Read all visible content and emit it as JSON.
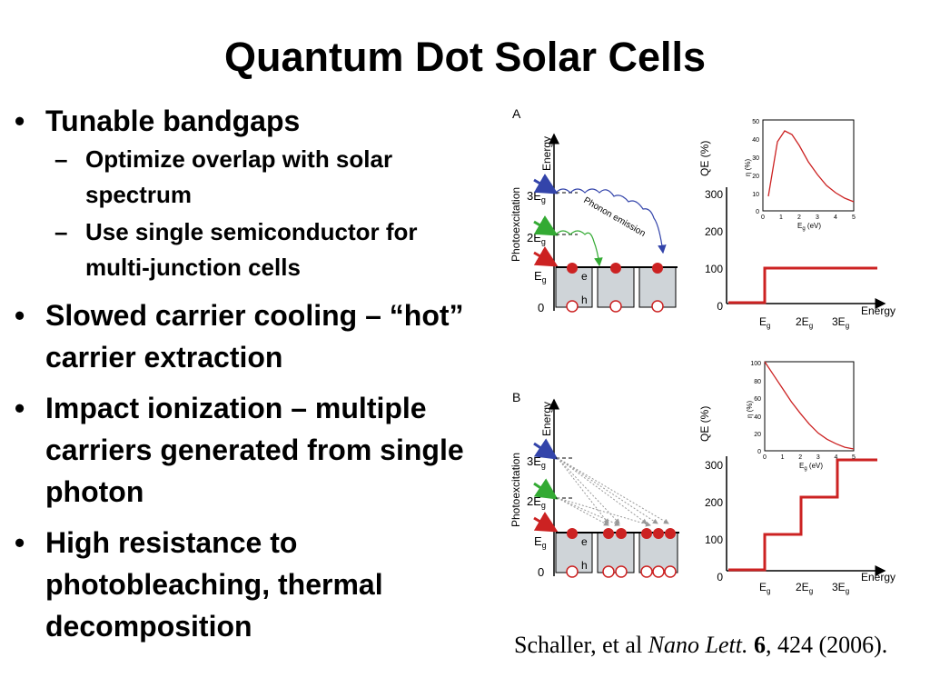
{
  "slide": {
    "title": "Quantum Dot Solar Cells"
  },
  "bullets": [
    {
      "text": "Tunable bandgaps",
      "subs": [
        "Optimize overlap with solar spectrum",
        "Use single semiconductor for multi-junction cells"
      ]
    },
    {
      "text": "Slowed carrier cooling – “hot” carrier extraction"
    },
    {
      "text": "Impact ionization – multiple carriers generated from single photon"
    },
    {
      "text": "High resistance to photobleaching, thermal decomposition"
    }
  ],
  "figure": {
    "panel_a": {
      "label": "A",
      "inset_values": {
        "x": [
          0.3,
          0.8,
          1.2,
          1.6,
          2.0,
          2.5,
          3.0,
          3.5,
          4.0,
          4.5,
          5.0
        ],
        "y": [
          8,
          38,
          44,
          42,
          36,
          27,
          20,
          14,
          10,
          7,
          5
        ]
      },
      "qe_steps": [
        {
          "from": "0",
          "to": "Eg",
          "qe": 0
        },
        {
          "from": "Eg",
          "to": "",
          "qe": 100
        }
      ]
    },
    "panel_b": {
      "label": "B",
      "inset_values": {
        "x": [
          0,
          0.5,
          1,
          1.5,
          2,
          2.5,
          3,
          3.5,
          4,
          4.5,
          5
        ],
        "y": [
          100,
          85,
          70,
          55,
          42,
          30,
          20,
          13,
          8,
          4,
          2
        ]
      },
      "qe_steps": [
        {
          "from": "0",
          "to": "Eg",
          "qe": 0
        },
        {
          "from": "Eg",
          "to": "2Eg",
          "qe": 100
        },
        {
          "from": "2Eg",
          "to": "3Eg",
          "qe": 200
        },
        {
          "from": "3Eg",
          "to": "",
          "qe": 300
        }
      ]
    },
    "energy_axis_label": "Energy",
    "photoexcitation_label": "Photoexcitation",
    "levels": {
      "l3": "3E",
      "l2": "2E",
      "l1": "E",
      "sub": "g",
      "zero": "0"
    },
    "eh": {
      "e": "e",
      "h": "h"
    },
    "phonon_label": "Phonon emission",
    "qe_axis_label": "QE (%)",
    "qe_ticks": [
      "300",
      "200",
      "100",
      "0"
    ],
    "energy_x_ticks": {
      "t1": "E",
      "t2": "2E",
      "t3": "3E",
      "sub": "g"
    },
    "inset_a": {
      "yticks": [
        "50",
        "40",
        "30",
        "20",
        "10",
        "0"
      ],
      "xticks": [
        "0",
        "1",
        "2",
        "3",
        "4",
        "5"
      ],
      "ylabel": "η (%)",
      "xlabel": "E",
      "xlabel_sub": "g",
      "xlabel_unit": " (eV)"
    },
    "inset_b": {
      "yticks": [
        "100",
        "80",
        "60",
        "40",
        "20",
        "0"
      ],
      "xticks": [
        "0",
        "1",
        "2",
        "3",
        "4",
        "5"
      ],
      "ylabel": "η (%)",
      "xlabel": "E",
      "xlabel_sub": "g",
      "xlabel_unit": " (eV)"
    },
    "colors": {
      "red": "#cc2222",
      "blue": "#3344aa",
      "green": "#33aa33",
      "gray_box": "#cfd4d8",
      "arrow_gray": "#999999"
    }
  },
  "citation": {
    "authors": "Schaller, et al ",
    "journal": "Nano Lett.",
    "sep": " ",
    "volume": "6",
    "rest": ", 424 (2006)."
  }
}
